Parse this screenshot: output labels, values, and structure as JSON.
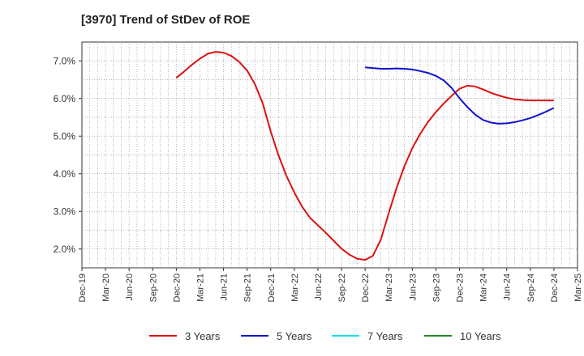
{
  "chart_data": {
    "type": "line",
    "title": "[3970]  Trend of StDev of ROE",
    "xlabel": "",
    "ylabel": "",
    "x_ticks": [
      "Dec-19",
      "Mar-20",
      "Jun-20",
      "Sep-20",
      "Dec-20",
      "Mar-21",
      "Jun-21",
      "Sep-21",
      "Dec-21",
      "Mar-22",
      "Jun-22",
      "Sep-22",
      "Dec-22",
      "Mar-23",
      "Jun-23",
      "Sep-23",
      "Dec-23",
      "Mar-24",
      "Jun-24",
      "Sep-24",
      "Dec-24",
      "Mar-25"
    ],
    "y_ticks": [
      "2.0%",
      "3.0%",
      "4.0%",
      "5.0%",
      "6.0%",
      "7.0%"
    ],
    "ylim": [
      1.5,
      7.5
    ],
    "grid": true,
    "legend_position": "bottom",
    "series": [
      {
        "name": "3 Years",
        "color": "#dd1111",
        "points": [
          [
            "Dec-20",
            6.55
          ],
          [
            "Jan-21",
            6.72
          ],
          [
            "Feb-21",
            6.9
          ],
          [
            "Mar-21",
            7.06
          ],
          [
            "Apr-21",
            7.19
          ],
          [
            "May-21",
            7.24
          ],
          [
            "Jun-21",
            7.22
          ],
          [
            "Jul-21",
            7.13
          ],
          [
            "Aug-21",
            6.97
          ],
          [
            "Sep-21",
            6.74
          ],
          [
            "Oct-21",
            6.38
          ],
          [
            "Nov-21",
            5.86
          ],
          [
            "Dec-21",
            5.12
          ],
          [
            "Jan-22",
            4.48
          ],
          [
            "Feb-22",
            3.94
          ],
          [
            "Mar-22",
            3.5
          ],
          [
            "Apr-22",
            3.12
          ],
          [
            "May-22",
            2.83
          ],
          [
            "Jun-22",
            2.63
          ],
          [
            "Jul-22",
            2.43
          ],
          [
            "Aug-22",
            2.22
          ],
          [
            "Sep-22",
            2.01
          ],
          [
            "Oct-22",
            1.85
          ],
          [
            "Nov-22",
            1.74
          ],
          [
            "Dec-22",
            1.71
          ],
          [
            "Jan-23",
            1.82
          ],
          [
            "Feb-23",
            2.25
          ],
          [
            "Mar-23",
            2.95
          ],
          [
            "Apr-23",
            3.62
          ],
          [
            "May-23",
            4.2
          ],
          [
            "Jun-23",
            4.68
          ],
          [
            "Jul-23",
            5.06
          ],
          [
            "Aug-23",
            5.38
          ],
          [
            "Sep-23",
            5.64
          ],
          [
            "Oct-23",
            5.87
          ],
          [
            "Nov-23",
            6.07
          ],
          [
            "Dec-23",
            6.26
          ],
          [
            "Jan-24",
            6.34
          ],
          [
            "Feb-24",
            6.32
          ],
          [
            "Mar-24",
            6.24
          ],
          [
            "Apr-24",
            6.15
          ],
          [
            "May-24",
            6.08
          ],
          [
            "Jun-24",
            6.02
          ],
          [
            "Jul-24",
            5.98
          ],
          [
            "Aug-24",
            5.96
          ],
          [
            "Sep-24",
            5.95
          ],
          [
            "Oct-24",
            5.95
          ],
          [
            "Nov-24",
            5.95
          ],
          [
            "Dec-24",
            5.95
          ]
        ]
      },
      {
        "name": "5 Years",
        "color": "#1111cc",
        "points": [
          [
            "Dec-22",
            6.83
          ],
          [
            "Jan-23",
            6.81
          ],
          [
            "Feb-23",
            6.79
          ],
          [
            "Mar-23",
            6.79
          ],
          [
            "Apr-23",
            6.8
          ],
          [
            "May-23",
            6.79
          ],
          [
            "Jun-23",
            6.77
          ],
          [
            "Jul-23",
            6.73
          ],
          [
            "Aug-23",
            6.68
          ],
          [
            "Sep-23",
            6.6
          ],
          [
            "Oct-23",
            6.48
          ],
          [
            "Nov-23",
            6.28
          ],
          [
            "Dec-23",
            6.01
          ],
          [
            "Jan-24",
            5.77
          ],
          [
            "Feb-24",
            5.57
          ],
          [
            "Mar-24",
            5.43
          ],
          [
            "Apr-24",
            5.36
          ],
          [
            "May-24",
            5.33
          ],
          [
            "Jun-24",
            5.34
          ],
          [
            "Jul-24",
            5.37
          ],
          [
            "Aug-24",
            5.42
          ],
          [
            "Sep-24",
            5.48
          ],
          [
            "Oct-24",
            5.56
          ],
          [
            "Nov-24",
            5.65
          ],
          [
            "Dec-24",
            5.75
          ]
        ]
      },
      {
        "name": "7 Years",
        "color": "#00e5ee",
        "points": []
      },
      {
        "name": "10 Years",
        "color": "#228b22",
        "points": []
      }
    ]
  }
}
